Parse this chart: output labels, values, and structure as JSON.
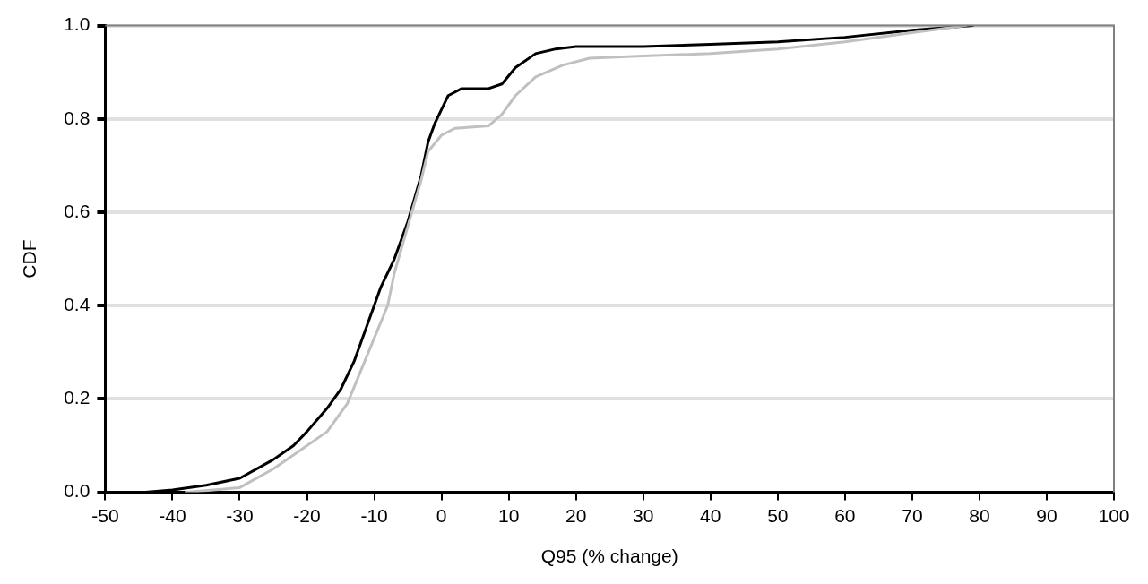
{
  "chart_data": {
    "type": "line",
    "xlabel": "Q95 (% change)",
    "ylabel": "CDF",
    "xlim": [
      -50,
      100
    ],
    "xticks": [
      -50,
      -40,
      -30,
      -20,
      -10,
      0,
      10,
      20,
      30,
      40,
      50,
      60,
      70,
      80,
      90,
      100
    ],
    "ylim": [
      0,
      1
    ],
    "yticks": [
      {
        "value": 0,
        "label": "0.0"
      },
      {
        "value": 0.2,
        "label": "0.2"
      },
      {
        "value": 0.4,
        "label": "0.4"
      },
      {
        "value": 0.6,
        "label": "0.6"
      },
      {
        "value": 0.8,
        "label": "0.8"
      },
      {
        "value": 1,
        "label": "1.0"
      }
    ],
    "grid": "y",
    "legend": false,
    "marker": "none",
    "line_style": "solid",
    "series": [
      {
        "color": "#c0c0c0",
        "x": [
          -38,
          -30,
          -25,
          -20,
          -17,
          -14,
          -12,
          -10,
          -8,
          -7,
          -5,
          -3,
          -2,
          0,
          2,
          7,
          9,
          11,
          14,
          18,
          22,
          30,
          40,
          50,
          60,
          70,
          78
        ],
        "values": [
          0,
          0.01,
          0.05,
          0.1,
          0.13,
          0.19,
          0.26,
          0.33,
          0.4,
          0.47,
          0.57,
          0.67,
          0.73,
          0.765,
          0.78,
          0.785,
          0.81,
          0.85,
          0.89,
          0.915,
          0.93,
          0.935,
          0.94,
          0.95,
          0.965,
          0.985,
          1
        ]
      },
      {
        "color": "#000000",
        "x": [
          -44,
          -40,
          -35,
          -30,
          -25,
          -22,
          -20,
          -17,
          -15,
          -13,
          -11,
          -9,
          -7,
          -5,
          -3,
          -2,
          -1,
          0,
          1,
          3,
          7,
          9,
          11,
          14,
          17,
          20,
          30,
          40,
          50,
          60,
          70,
          79
        ],
        "values": [
          0,
          0.005,
          0.015,
          0.03,
          0.07,
          0.1,
          0.13,
          0.18,
          0.22,
          0.28,
          0.36,
          0.44,
          0.5,
          0.58,
          0.68,
          0.75,
          0.79,
          0.82,
          0.85,
          0.865,
          0.865,
          0.875,
          0.91,
          0.94,
          0.95,
          0.955,
          0.955,
          0.96,
          0.965,
          0.975,
          0.99,
          1
        ]
      }
    ]
  }
}
